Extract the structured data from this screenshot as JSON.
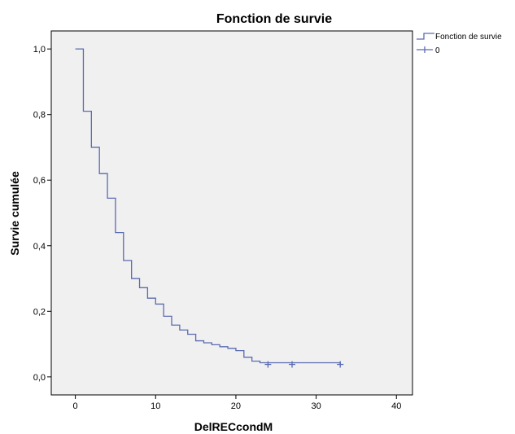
{
  "chart_data": {
    "type": "line",
    "title": "Fonction de survie",
    "xlabel": "DelRECcondM",
    "ylabel": "Survie cumulée",
    "xlim": [
      -3,
      42
    ],
    "ylim": [
      -0.055,
      1.055
    ],
    "xticks": [
      0,
      10,
      20,
      30,
      40
    ],
    "xtick_labels": [
      "0",
      "10",
      "20",
      "30",
      "40"
    ],
    "yticks": [
      0.0,
      0.2,
      0.4,
      0.6,
      0.8,
      1.0
    ],
    "ytick_labels": [
      "0,0",
      "0,2",
      "0,4",
      "0,6",
      "0,8",
      "1,0"
    ],
    "grid": false,
    "legend_position": "top-right",
    "colors": {
      "plot_bg": "#f0f0f0",
      "line": "#5a6bb0",
      "axis": "#000000"
    },
    "series": [
      {
        "name": "Fonction de survie",
        "step": true,
        "x": [
          0,
          1,
          2,
          3,
          4,
          5,
          6,
          7,
          8,
          9,
          10,
          11,
          12,
          13,
          14,
          15,
          16,
          17,
          18,
          19,
          20,
          21,
          22,
          23,
          33
        ],
        "y": [
          1.0,
          0.81,
          0.7,
          0.62,
          0.545,
          0.44,
          0.355,
          0.3,
          0.272,
          0.24,
          0.222,
          0.185,
          0.158,
          0.143,
          0.13,
          0.11,
          0.104,
          0.098,
          0.092,
          0.087,
          0.08,
          0.06,
          0.048,
          0.043,
          0.038
        ]
      },
      {
        "name": "0",
        "marker": "plus",
        "x": [
          24,
          27,
          33
        ],
        "y": [
          0.038,
          0.038,
          0.038
        ]
      }
    ]
  }
}
